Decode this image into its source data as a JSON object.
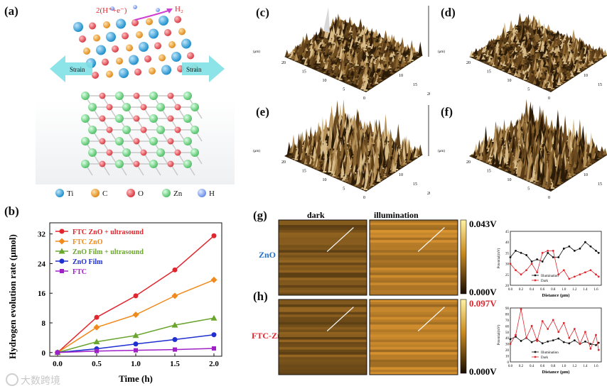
{
  "panel_labels": {
    "a": "(a)",
    "b": "(b)",
    "c": "(c)",
    "d": "(d)",
    "e": "(e)",
    "f": "(f)",
    "g": "(g)",
    "h": "(h)"
  },
  "structure": {
    "reaction": "2(H⁺+e⁻)",
    "product": "H₂",
    "strain_left": "Strain",
    "strain_right": "Strain",
    "legend": [
      {
        "label": "Ti",
        "color": "#3aa6dd"
      },
      {
        "label": "C",
        "color": "#f2a63a"
      },
      {
        "label": "O",
        "color": "#e8545a"
      },
      {
        "label": "Zn",
        "color": "#7dd58e"
      },
      {
        "label": "H",
        "color": "#8eaef0"
      }
    ]
  },
  "afm": [
    {
      "id": "c",
      "zmax": "205.1",
      "zmid": "102.5",
      "zmin": "20",
      "unit": "(nm)",
      "ulabel": "(μm)",
      "spike": true
    },
    {
      "id": "d",
      "zmax": "4.70",
      "zmid": "2.35",
      "zmin": "",
      "unit": "(μm)",
      "ulabel": "(μm)",
      "spike": false
    },
    {
      "id": "e",
      "zmax": "14.00",
      "zmid": "7.00",
      "zmin": "",
      "unit": "(μm)",
      "ulabel": "(μm)",
      "spike": false
    },
    {
      "id": "f",
      "zmax": "24.00",
      "zmid": "12.00",
      "zmin": "",
      "unit": "(μm)",
      "ulabel": "(μm)",
      "spike": false
    }
  ],
  "afm_axis_ticks": {
    "back": [
      "20",
      "15",
      "10",
      "5",
      "0"
    ],
    "front": [
      "20",
      "15",
      "10",
      "5",
      "0"
    ]
  },
  "kpfm": {
    "col_dark": "dark",
    "col_illum": "illumination",
    "row_zno": "ZnO",
    "row_ftc": "FTC-ZnO",
    "zno_scale_max": "0.043V",
    "zno_scale_min": "0.000V",
    "ftc_scale_max": "0.097V",
    "ftc_scale_min": "0.000V",
    "zno_color": "#1f6fd1",
    "ftc_color": "#e0262e"
  },
  "chart_data": [
    {
      "type": "line",
      "id": "b",
      "x": [
        0,
        0.5,
        1.0,
        1.5,
        2.0
      ],
      "xlabel": "Time (h)",
      "ylabel": "Hydrogen evolution rate (μmol)",
      "xticks": [
        "0.0",
        "0.5",
        "1.0",
        "1.5",
        "2.0"
      ],
      "yticks": [
        "0",
        "8",
        "16",
        "24",
        "32"
      ],
      "xlim": [
        -0.1,
        2.1
      ],
      "ylim": [
        -1,
        35
      ],
      "series": [
        {
          "name": "FTC ZnO + ultrasound",
          "color": "#e0262e",
          "marker": "circle",
          "values": [
            0,
            9.5,
            15.3,
            22.3,
            31.5
          ]
        },
        {
          "name": "FTC ZnO",
          "color": "#f08a1c",
          "marker": "diamond",
          "values": [
            0,
            6.8,
            10.2,
            15.3,
            19.6
          ]
        },
        {
          "name": "ZnO Film + ultrasound",
          "color": "#6aa52e",
          "marker": "triangle",
          "values": [
            0,
            2.9,
            4.6,
            7.4,
            9.3
          ]
        },
        {
          "name": "ZnO Film",
          "color": "#1f2fd0",
          "marker": "circle",
          "values": [
            0,
            1.0,
            2.3,
            3.5,
            4.8
          ]
        },
        {
          "name": "FTC",
          "color": "#a020c8",
          "marker": "square",
          "values": [
            0,
            0.4,
            0.6,
            0.8,
            1.1
          ]
        }
      ]
    },
    {
      "type": "line",
      "id": "g-profile",
      "xlabel": "Distance (μm)",
      "ylabel": "Potential(mV)",
      "xticks": [
        "0.0",
        "0.2",
        "0.4",
        "0.6",
        "0.8",
        "1.0",
        "1.2",
        "1.4",
        "1.6"
      ],
      "yticks": [
        "20",
        "25",
        "30",
        "35",
        "40",
        "45"
      ],
      "xlim": [
        0,
        1.7
      ],
      "ylim": [
        20,
        45
      ],
      "series": [
        {
          "name": "Illumination",
          "color": "#111111",
          "x": [
            0,
            0.1,
            0.2,
            0.3,
            0.4,
            0.5,
            0.6,
            0.7,
            0.8,
            0.9,
            1.0,
            1.1,
            1.2,
            1.3,
            1.4,
            1.5,
            1.6,
            1.65
          ],
          "values": [
            33,
            36,
            35,
            34,
            31,
            32,
            31,
            35,
            33,
            33,
            37,
            38,
            36,
            37,
            40,
            38,
            36,
            35
          ]
        },
        {
          "name": "Dark",
          "color": "#e0262e",
          "x": [
            0,
            0.1,
            0.2,
            0.3,
            0.4,
            0.5,
            0.6,
            0.7,
            0.8,
            0.9,
            1.0,
            1.1,
            1.2,
            1.3,
            1.4,
            1.5,
            1.6,
            1.65
          ],
          "values": [
            30,
            27,
            25,
            27,
            30,
            26,
            35,
            36,
            36,
            25,
            27,
            23,
            24,
            25,
            26,
            27,
            25,
            24
          ]
        }
      ]
    },
    {
      "type": "line",
      "id": "h-profile",
      "xlabel": "Distance (μm)",
      "ylabel": "Potential(mV)",
      "xticks": [
        "0.0",
        "0.2",
        "0.4",
        "0.6",
        "0.8",
        "1.0",
        "1.2",
        "1.4",
        "1.6"
      ],
      "yticks": [
        "0",
        "10",
        "20",
        "30",
        "40",
        "50",
        "60",
        "70",
        "80",
        "90"
      ],
      "xlim": [
        0,
        1.7
      ],
      "ylim": [
        0,
        90
      ],
      "series": [
        {
          "name": "Illumination",
          "color": "#111111",
          "x": [
            0,
            0.1,
            0.2,
            0.3,
            0.4,
            0.5,
            0.6,
            0.7,
            0.8,
            0.9,
            1.0,
            1.1,
            1.2,
            1.3,
            1.4,
            1.5,
            1.6,
            1.65
          ],
          "values": [
            38,
            42,
            35,
            40,
            33,
            37,
            31,
            34,
            36,
            39,
            33,
            31,
            36,
            30,
            34,
            30,
            28,
            32
          ]
        },
        {
          "name": "Dark",
          "color": "#e0262e",
          "x": [
            0,
            0.1,
            0.2,
            0.3,
            0.4,
            0.5,
            0.6,
            0.7,
            0.8,
            0.9,
            1.0,
            1.1,
            1.2,
            1.3,
            1.4,
            1.5,
            1.6,
            1.65
          ],
          "values": [
            30,
            45,
            88,
            40,
            60,
            35,
            68,
            55,
            70,
            50,
            65,
            40,
            55,
            30,
            50,
            22,
            45,
            20
          ]
        }
      ]
    }
  ],
  "watermark": "大数跨境"
}
